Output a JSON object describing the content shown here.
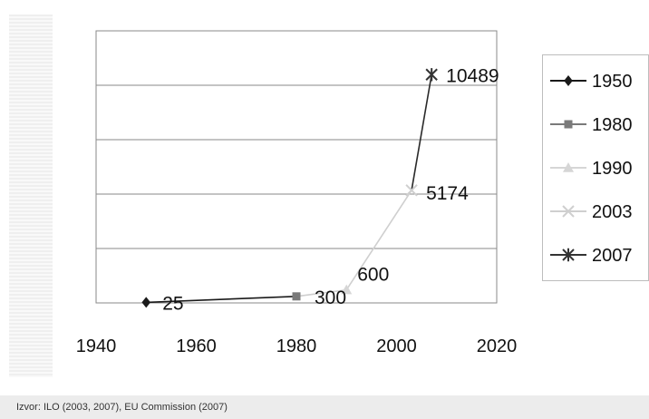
{
  "chart_data": {
    "type": "line",
    "xlim": [
      1940,
      2020
    ],
    "ylim": [
      0,
      12500
    ],
    "grid": true,
    "legend_position": "right",
    "x_ticks": [
      "1940",
      "1960",
      "1980",
      "2000",
      "2020"
    ],
    "series": [
      {
        "name": "1950",
        "x": 1950,
        "y": 25,
        "label": "25",
        "marker": "diamond",
        "color": "#1a1a1a"
      },
      {
        "name": "1980",
        "x": 1980,
        "y": 300,
        "label": "300",
        "marker": "square",
        "color": "#7a7a7a"
      },
      {
        "name": "1990",
        "x": 1990,
        "y": 600,
        "label": "600",
        "marker": "triangle",
        "color": "#d6d6d6"
      },
      {
        "name": "2003",
        "x": 2003,
        "y": 5174,
        "label": "5174",
        "marker": "x",
        "color": "#cfcfcf"
      },
      {
        "name": "2007",
        "x": 2007,
        "y": 10489,
        "label": "10489",
        "marker": "star",
        "color": "#333333"
      }
    ],
    "segments": [
      {
        "from": 0,
        "to": 1,
        "color": "#1a1a1a"
      },
      {
        "from": 1,
        "to": 2,
        "color": "#cfcfcf"
      },
      {
        "from": 2,
        "to": 3,
        "color": "#cfcfcf"
      },
      {
        "from": 3,
        "to": 4,
        "color": "#2a2a2a"
      }
    ]
  },
  "source": "Izvor: ILO (2003, 2007), EU Commission (2007)"
}
